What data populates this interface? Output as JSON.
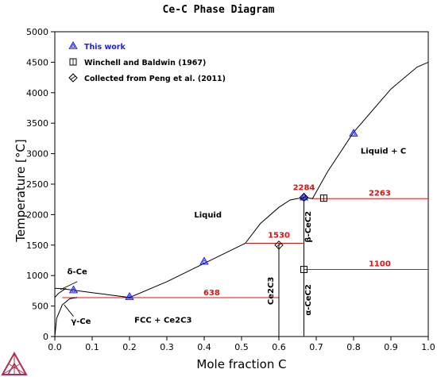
{
  "chart_data": {
    "type": "line",
    "title": "Ce-C Phase Diagram",
    "xlabel": "Mole fraction C",
    "ylabel": "Temperature [°C]",
    "xlim": [
      0,
      1
    ],
    "ylim": [
      0,
      5000
    ],
    "xticks": [
      0.0,
      0.1,
      0.2,
      0.3,
      0.4,
      0.5,
      0.6,
      0.7,
      0.8,
      0.9,
      1.0
    ],
    "xtick_labels": [
      "0.0",
      "0.1",
      "0.2",
      "0.3",
      "0.4",
      "0.5",
      "0.6",
      "0.7",
      "0.8",
      "0.9",
      "1.0"
    ],
    "yticks": [
      0,
      500,
      1000,
      1500,
      2000,
      2500,
      3000,
      3500,
      4000,
      4500,
      5000
    ],
    "ytick_labels": [
      "0",
      "500",
      "1000",
      "1500",
      "2000",
      "2500",
      "3000",
      "3500",
      "4000",
      "4500",
      "5000"
    ],
    "grid": false,
    "legend_position": "top-left",
    "legend": [
      {
        "label": "This work",
        "marker": "triangle",
        "color": "#1a1aff"
      },
      {
        "label": "Winchell and Baldwin (1967)",
        "marker": "square",
        "color": "#000000"
      },
      {
        "label": "Collected from Peng et al. (2011)",
        "marker": "diamond",
        "color": "#000000"
      }
    ],
    "colors": {
      "phase_line": "#000000",
      "invariant_line": "#e01010",
      "triangle": "#1a1aff",
      "label": "#e01010"
    },
    "phase_boundaries": [
      {
        "x": [
          0.0,
          0.02,
          0.05,
          0.1,
          0.15,
          0.2,
          0.3,
          0.4,
          0.5,
          0.51
        ],
        "y": [
          790,
          785,
          760,
          720,
          680,
          640,
          900,
          1200,
          1500,
          1530
        ]
      },
      {
        "x": [
          0.51,
          0.55,
          0.6,
          0.63,
          0.667,
          0.69
        ],
        "y": [
          1530,
          1850,
          2120,
          2240,
          2284,
          2263
        ]
      },
      {
        "x": [
          0.69,
          0.73,
          0.8,
          0.9,
          0.97,
          1.0
        ],
        "y": [
          2263,
          2700,
          3350,
          4060,
          4420,
          4500
        ]
      },
      {
        "x": [
          0.0,
          0.005,
          0.02,
          0.04,
          0.06
        ],
        "y": [
          0,
          300,
          520,
          620,
          640
        ]
      },
      {
        "x": [
          0.0,
          0.01,
          0.03
        ],
        "y": [
          640,
          710,
          790
        ]
      },
      {
        "x": [
          0.6,
          0.6
        ],
        "y": [
          0,
          1530
        ]
      },
      {
        "x": [
          0.667,
          0.667
        ],
        "y": [
          0,
          2284
        ]
      }
    ],
    "invariant_lines": [
      {
        "x": [
          0.02,
          0.6
        ],
        "y": [
          638,
          638
        ],
        "label": "638"
      },
      {
        "x": [
          0.51,
          0.667
        ],
        "y": [
          1530,
          1530
        ],
        "label": "1530"
      },
      {
        "x": [
          0.69,
          1.0
        ],
        "y": [
          2263,
          2263
        ],
        "label": "2263"
      },
      {
        "x": [
          0.667,
          1.0
        ],
        "y": [
          1100,
          1100
        ],
        "label": "1100"
      },
      {
        "x": [
          0.667,
          0.69
        ],
        "y": [
          2284,
          2263
        ],
        "label": "2284"
      }
    ],
    "invariant_label_positions": [
      {
        "label": "638",
        "x": 0.42,
        "y": 680
      },
      {
        "label": "1530",
        "x": 0.6,
        "y": 1620
      },
      {
        "label": "2263",
        "x": 0.87,
        "y": 2310
      },
      {
        "label": "1100",
        "x": 0.87,
        "y": 1150
      },
      {
        "label": "2284",
        "x": 0.667,
        "y": 2400
      }
    ],
    "this_work_points": {
      "x": [
        0.05,
        0.2,
        0.4,
        0.667,
        0.8
      ],
      "y": [
        760,
        650,
        1230,
        2284,
        3330
      ]
    },
    "winchell_baldwin_points": {
      "x": [
        0.667,
        0.72
      ],
      "y": [
        1100,
        2270
      ]
    },
    "peng_points": {
      "x": [
        0.6,
        0.667
      ],
      "y": [
        1500,
        2284
      ]
    },
    "region_labels": [
      {
        "text": "Liquid",
        "x": 0.41,
        "y": 1950
      },
      {
        "text": "Liquid + C",
        "x": 0.88,
        "y": 3000
      },
      {
        "text": "FCC + Ce2C3",
        "x": 0.29,
        "y": 230
      },
      {
        "text": "δ-Ce",
        "x": 0.06,
        "y": 1020
      },
      {
        "text": "γ-Ce",
        "x": 0.07,
        "y": 210
      }
    ],
    "vertical_labels": [
      {
        "text": "Ce2C3",
        "x": 0.585,
        "y": 750
      },
      {
        "text": "β-CeC2",
        "x": 0.685,
        "y": 1800
      },
      {
        "text": "α-CeC2",
        "x": 0.685,
        "y": 600
      }
    ]
  }
}
